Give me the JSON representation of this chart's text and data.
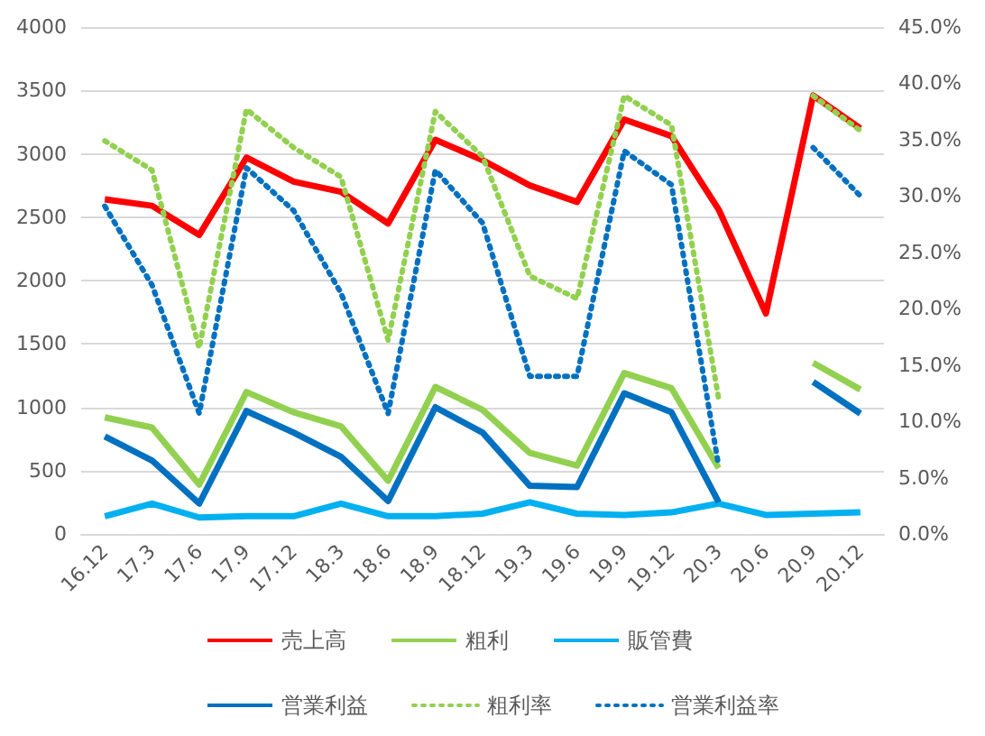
{
  "chart_data": {
    "type": "line",
    "categories": [
      "16.12",
      "17.3",
      "17.6",
      "17.9",
      "17.12",
      "18.3",
      "18.6",
      "18.9",
      "18.12",
      "19.3",
      "19.6",
      "19.9",
      "19.12",
      "20.3",
      "20.6",
      "20.9",
      "20.12"
    ],
    "series": [
      {
        "name": "売上高",
        "color": "#ff0000",
        "line_style": "solid",
        "values": [
          2640,
          2590,
          2360,
          2970,
          2780,
          2700,
          2450,
          3110,
          2950,
          2750,
          2620,
          3270,
          3140,
          2560,
          1740,
          3460,
          3200
        ]
      },
      {
        "name": "粗利",
        "color": "#92d050",
        "line_style": "solid",
        "values": [
          920,
          840,
          390,
          1120,
          960,
          850,
          420,
          1160,
          980,
          640,
          540,
          1270,
          1150,
          520,
          null,
          1350,
          1140
        ]
      },
      {
        "name": "販管費",
        "color": "#00b0f0",
        "line_style": "solid",
        "values": [
          140,
          240,
          130,
          140,
          140,
          240,
          140,
          140,
          160,
          250,
          160,
          150,
          170,
          240,
          150,
          160,
          170
        ]
      },
      {
        "name": "営業利益",
        "color": "#0070c0",
        "line_style": "solid",
        "values": [
          770,
          580,
          240,
          970,
          800,
          610,
          260,
          1000,
          800,
          380,
          370,
          1110,
          960,
          250,
          null,
          1200,
          950
        ]
      },
      {
        "name": "粗利率",
        "color": "#92d050",
        "line_style": "dotted",
        "axis": "y2",
        "values": [
          34.9,
          32.3,
          16.5,
          37.7,
          34.3,
          31.7,
          17.2,
          37.5,
          33.5,
          22.9,
          20.9,
          38.9,
          36.3,
          12.0,
          null,
          38.9,
          35.8
        ]
      },
      {
        "name": "営業利益率",
        "color": "#0070c0",
        "line_style": "dotted",
        "axis": "y2",
        "values": [
          29.1,
          22.1,
          10.7,
          32.5,
          28.7,
          21.4,
          10.7,
          32.3,
          27.6,
          14.0,
          14.0,
          34.0,
          31.0,
          6.0,
          null,
          34.3,
          30.0
        ]
      }
    ],
    "ylim": [
      0,
      4000
    ],
    "yticks": [
      0,
      500,
      1000,
      1500,
      2000,
      2500,
      3000,
      3500,
      4000
    ],
    "y2lim": [
      0,
      45
    ],
    "y2ticks": [
      {
        "value": 0,
        "label": "0.0%"
      },
      {
        "value": 5,
        "label": "5.0%"
      },
      {
        "value": 10,
        "label": "10.0%"
      },
      {
        "value": 15,
        "label": "15.0%"
      },
      {
        "value": 20,
        "label": "20.0%"
      },
      {
        "value": 25,
        "label": "25.0%"
      },
      {
        "value": 30,
        "label": "30.0%"
      },
      {
        "value": 35,
        "label": "35.0%"
      },
      {
        "value": 40,
        "label": "40.0%"
      },
      {
        "value": 45,
        "label": "45.0%"
      }
    ],
    "grid": "y",
    "legend": "bottom",
    "marker": "none"
  }
}
